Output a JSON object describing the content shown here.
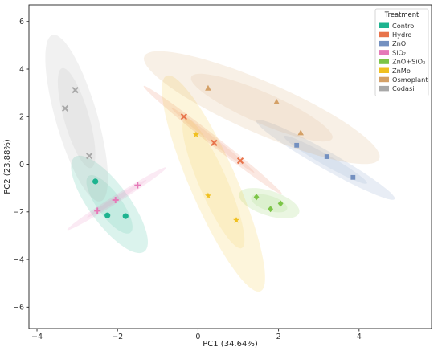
{
  "chart_data": {
    "type": "scatter",
    "xlabel": "PC1 (34.64%)",
    "ylabel": "PC2 (23.88%)",
    "xlim": [
      -4.2,
      5.8
    ],
    "ylim": [
      -6.9,
      6.7
    ],
    "xticks": [
      -4,
      -2,
      0,
      2,
      4
    ],
    "yticks": [
      -6,
      -4,
      -2,
      0,
      2,
      4,
      6
    ],
    "grid": false,
    "legend": {
      "title": "Treatment",
      "position": "top-right"
    },
    "series": [
      {
        "name": "Control",
        "color": "#1db38f",
        "marker": "circle",
        "points": [
          [
            -2.55,
            -0.72
          ],
          [
            -2.25,
            -2.15
          ],
          [
            -1.8,
            -2.18
          ]
        ]
      },
      {
        "name": "Hydro",
        "color": "#e8734a",
        "marker": "x",
        "points": [
          [
            -0.35,
            2.0
          ],
          [
            0.4,
            0.9
          ],
          [
            1.05,
            0.15
          ]
        ]
      },
      {
        "name": "ZnO",
        "color": "#7390c0",
        "marker": "square",
        "points": [
          [
            2.45,
            0.8
          ],
          [
            3.2,
            0.32
          ],
          [
            3.85,
            -0.55
          ]
        ]
      },
      {
        "name": "SiO₂",
        "color": "#e57ab8",
        "marker": "plus",
        "points": [
          [
            -2.5,
            -1.95
          ],
          [
            -2.05,
            -1.5
          ],
          [
            -1.5,
            -0.88
          ]
        ]
      },
      {
        "name": "ZnO+SiO₂",
        "color": "#7cc547",
        "marker": "diamond",
        "points": [
          [
            1.45,
            -1.38
          ],
          [
            1.8,
            -1.88
          ],
          [
            2.05,
            -1.65
          ]
        ]
      },
      {
        "name": "ZnMo",
        "color": "#f0c020",
        "marker": "star",
        "points": [
          [
            -0.05,
            1.25
          ],
          [
            0.25,
            -1.32
          ],
          [
            0.95,
            -2.35
          ]
        ]
      },
      {
        "name": "Osmoplant",
        "color": "#d4a066",
        "marker": "triangle",
        "points": [
          [
            0.25,
            3.2
          ],
          [
            1.95,
            2.62
          ],
          [
            2.55,
            1.32
          ]
        ]
      },
      {
        "name": "Codasil",
        "color": "#a8a8a8",
        "marker": "x",
        "points": [
          [
            -3.3,
            2.35
          ],
          [
            -3.05,
            3.12
          ],
          [
            -2.7,
            0.35
          ]
        ]
      }
    ]
  }
}
